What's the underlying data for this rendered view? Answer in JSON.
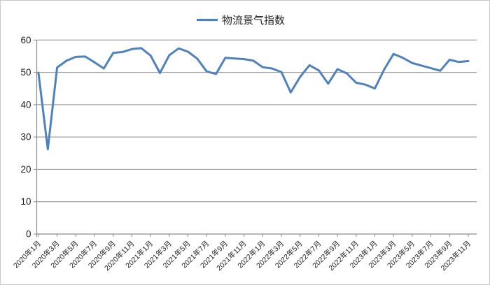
{
  "figure": {
    "kind": "excel-line-chart-screenshot"
  },
  "legend": {
    "label": "物流景气指数"
  },
  "chart_data": {
    "type": "line",
    "title": "物流景气指数",
    "xlabel": "",
    "ylabel": "",
    "ylim": [
      0,
      60
    ],
    "ytick_step": 10,
    "xtick_every": 2,
    "grid": "horizontal",
    "legend_position": "top-center",
    "grid_color": "#8C8C8C",
    "axis_color": "#8C8C8C",
    "x": [
      "2020年1月",
      "2020年2月",
      "2020年3月",
      "2020年4月",
      "2020年5月",
      "2020年6月",
      "2020年7月",
      "2020年8月",
      "2020年9月",
      "2020年10月",
      "2020年11月",
      "2020年12月",
      "2021年1月",
      "2021年2月",
      "2021年3月",
      "2021年4月",
      "2021年5月",
      "2021年6月",
      "2021年7月",
      "2021年8月",
      "2021年9月",
      "2021年10月",
      "2021年11月",
      "2021年12月",
      "2022年1月",
      "2022年2月",
      "2022年3月",
      "2022年4月",
      "2022年5月",
      "2022年6月",
      "2022年7月",
      "2022年8月",
      "2022年9月",
      "2022年10月",
      "2022年11月",
      "2022年12月",
      "2023年1月",
      "2023年2月",
      "2023年3月",
      "2023年4月",
      "2023年5月",
      "2023年6月",
      "2023年7月",
      "2023年8月",
      "2023年9月",
      "2023年10月",
      "2023年11月"
    ],
    "series": [
      {
        "name": "物流景气指数",
        "color": "#4F81BD",
        "values": [
          49.9,
          26.2,
          51.5,
          53.6,
          54.8,
          54.9,
          53.1,
          51.2,
          56.0,
          56.3,
          57.2,
          57.5,
          55.2,
          49.8,
          55.3,
          57.4,
          56.4,
          54.2,
          50.3,
          49.5,
          54.5,
          54.3,
          54.1,
          53.6,
          51.6,
          51.2,
          50.1,
          43.8,
          48.6,
          52.2,
          50.6,
          46.5,
          51.0,
          49.7,
          46.8,
          46.2,
          45.0,
          50.9,
          55.7,
          54.5,
          52.9,
          52.1,
          51.3,
          50.5,
          53.9,
          53.2,
          53.5
        ]
      }
    ]
  }
}
